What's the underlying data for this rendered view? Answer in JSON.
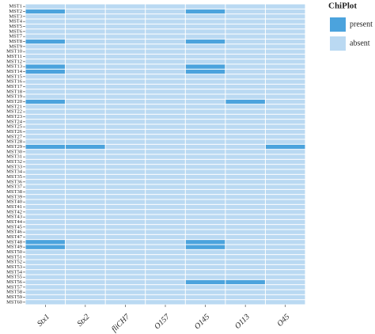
{
  "chart_data": {
    "type": "heatmap",
    "x": [
      "Stx1",
      "Stx2",
      "fliCH7",
      "O157",
      "O145",
      "O113",
      "O45"
    ],
    "y": [
      "MST1",
      "MST2",
      "MST3",
      "MST4",
      "MST5",
      "MST6",
      "MST7",
      "MST8",
      "MST9",
      "MST10",
      "MST11",
      "MST12",
      "MST13",
      "MST14",
      "MST15",
      "MST16",
      "MST17",
      "MST18",
      "MST19",
      "MST20",
      "MST21",
      "MST22",
      "MST23",
      "MST24",
      "MST25",
      "MST26",
      "MST27",
      "MST28",
      "MST29",
      "MST30",
      "MST31",
      "MST32",
      "MST33",
      "MST34",
      "MST35",
      "MST36",
      "MST37",
      "MST38",
      "MST39",
      "MST40",
      "MST41",
      "MST42",
      "MST43",
      "MST44",
      "MST45",
      "MST46",
      "MST47",
      "MST48",
      "MST49",
      "MST50",
      "MST51",
      "MST52",
      "MST53",
      "MST54",
      "MST55",
      "MST56",
      "MST57",
      "MST58",
      "MST59",
      "MST60"
    ],
    "legend_title": "ChiPlot",
    "levels": [
      {
        "name": "present",
        "color": "#4ba3dd"
      },
      {
        "name": "absent",
        "color": "#bad9f2"
      }
    ],
    "values": [
      [
        1,
        1,
        1,
        1,
        1,
        1,
        1
      ],
      [
        0,
        1,
        1,
        1,
        0,
        1,
        1
      ],
      [
        1,
        1,
        1,
        1,
        1,
        1,
        1
      ],
      [
        1,
        1,
        1,
        1,
        1,
        1,
        1
      ],
      [
        1,
        1,
        1,
        1,
        1,
        1,
        1
      ],
      [
        1,
        1,
        1,
        1,
        1,
        1,
        1
      ],
      [
        1,
        1,
        1,
        1,
        1,
        1,
        1
      ],
      [
        0,
        1,
        1,
        1,
        0,
        1,
        1
      ],
      [
        1,
        1,
        1,
        1,
        1,
        1,
        1
      ],
      [
        1,
        1,
        1,
        1,
        1,
        1,
        1
      ],
      [
        1,
        1,
        1,
        1,
        1,
        1,
        1
      ],
      [
        1,
        1,
        1,
        1,
        1,
        1,
        1
      ],
      [
        0,
        1,
        1,
        1,
        0,
        1,
        1
      ],
      [
        0,
        1,
        1,
        1,
        0,
        1,
        1
      ],
      [
        1,
        1,
        1,
        1,
        1,
        1,
        1
      ],
      [
        1,
        1,
        1,
        1,
        1,
        1,
        1
      ],
      [
        1,
        1,
        1,
        1,
        1,
        1,
        1
      ],
      [
        1,
        1,
        1,
        1,
        1,
        1,
        1
      ],
      [
        1,
        1,
        1,
        1,
        1,
        1,
        1
      ],
      [
        0,
        1,
        1,
        1,
        1,
        0,
        1
      ],
      [
        1,
        1,
        1,
        1,
        1,
        1,
        1
      ],
      [
        1,
        1,
        1,
        1,
        1,
        1,
        1
      ],
      [
        1,
        1,
        1,
        1,
        1,
        1,
        1
      ],
      [
        1,
        1,
        1,
        1,
        1,
        1,
        1
      ],
      [
        1,
        1,
        1,
        1,
        1,
        1,
        1
      ],
      [
        1,
        1,
        1,
        1,
        1,
        1,
        1
      ],
      [
        1,
        1,
        1,
        1,
        1,
        1,
        1
      ],
      [
        1,
        1,
        1,
        1,
        1,
        1,
        1
      ],
      [
        0,
        0,
        1,
        1,
        1,
        1,
        0
      ],
      [
        1,
        1,
        1,
        1,
        1,
        1,
        1
      ],
      [
        1,
        1,
        1,
        1,
        1,
        1,
        1
      ],
      [
        1,
        1,
        1,
        1,
        1,
        1,
        1
      ],
      [
        1,
        1,
        1,
        1,
        1,
        1,
        1
      ],
      [
        1,
        1,
        1,
        1,
        1,
        1,
        1
      ],
      [
        1,
        1,
        1,
        1,
        1,
        1,
        1
      ],
      [
        1,
        1,
        1,
        1,
        1,
        1,
        1
      ],
      [
        1,
        1,
        1,
        1,
        1,
        1,
        1
      ],
      [
        1,
        1,
        1,
        1,
        1,
        1,
        1
      ],
      [
        1,
        1,
        1,
        1,
        1,
        1,
        1
      ],
      [
        1,
        1,
        1,
        1,
        1,
        1,
        1
      ],
      [
        1,
        1,
        1,
        1,
        1,
        1,
        1
      ],
      [
        1,
        1,
        1,
        1,
        1,
        1,
        1
      ],
      [
        1,
        1,
        1,
        1,
        1,
        1,
        1
      ],
      [
        1,
        1,
        1,
        1,
        1,
        1,
        1
      ],
      [
        1,
        1,
        1,
        1,
        1,
        1,
        1
      ],
      [
        1,
        1,
        1,
        1,
        1,
        1,
        1
      ],
      [
        1,
        1,
        1,
        1,
        1,
        1,
        1
      ],
      [
        0,
        1,
        1,
        1,
        0,
        1,
        1
      ],
      [
        0,
        1,
        1,
        1,
        0,
        1,
        1
      ],
      [
        1,
        1,
        1,
        1,
        1,
        1,
        1
      ],
      [
        1,
        1,
        1,
        1,
        1,
        1,
        1
      ],
      [
        1,
        1,
        1,
        1,
        1,
        1,
        1
      ],
      [
        1,
        1,
        1,
        1,
        1,
        1,
        1
      ],
      [
        1,
        1,
        1,
        1,
        1,
        1,
        1
      ],
      [
        1,
        1,
        1,
        1,
        1,
        1,
        1
      ],
      [
        1,
        1,
        1,
        1,
        0,
        0,
        1
      ],
      [
        1,
        1,
        1,
        1,
        1,
        1,
        1
      ],
      [
        1,
        1,
        1,
        1,
        1,
        1,
        1
      ],
      [
        1,
        1,
        1,
        1,
        1,
        1,
        1
      ],
      [
        1,
        1,
        1,
        1,
        1,
        1,
        1
      ]
    ]
  }
}
